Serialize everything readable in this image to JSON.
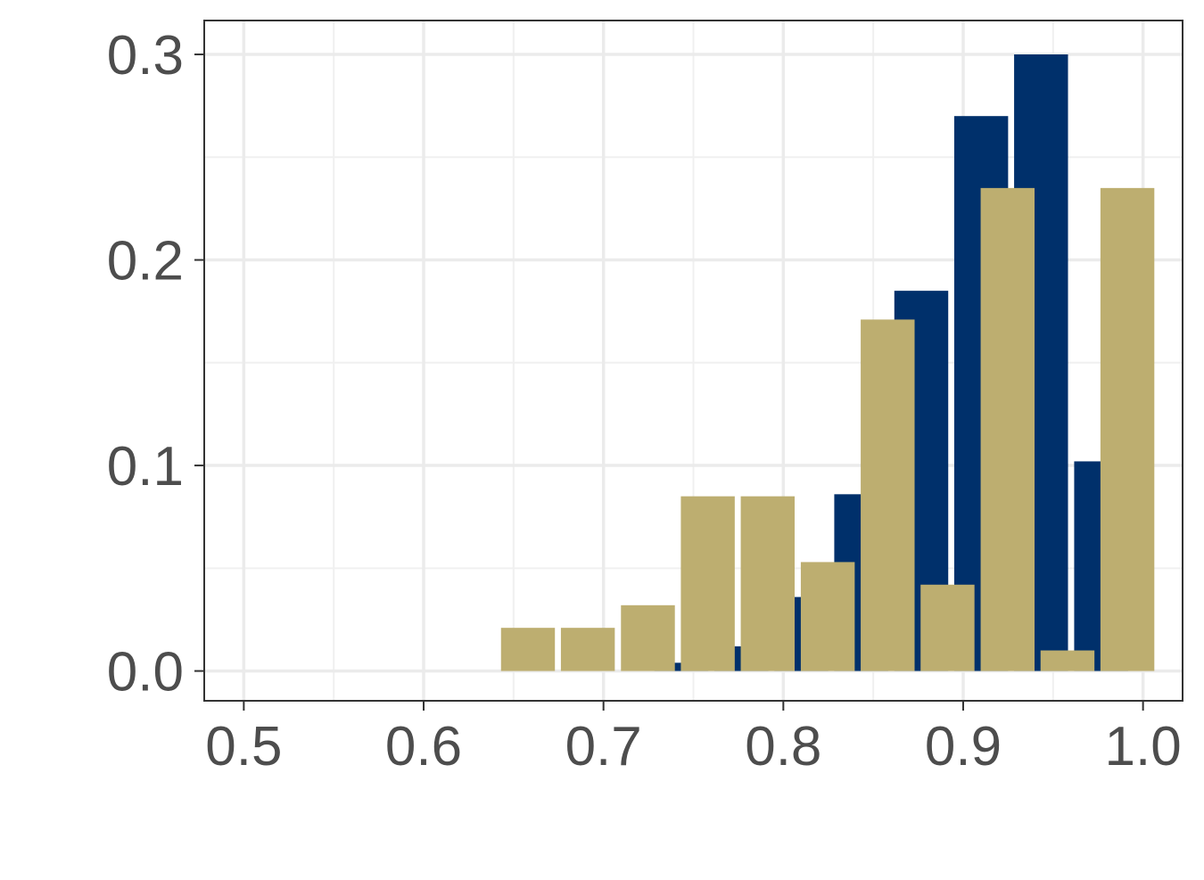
{
  "chart_data": {
    "type": "bar",
    "xlim": [
      0.478,
      1.022
    ],
    "ylim": [
      -0.0145,
      0.3165
    ],
    "x_ticks": [
      0.5,
      0.6,
      0.7,
      0.8,
      0.9,
      1.0
    ],
    "x_tick_labels": [
      "0.5",
      "0.6",
      "0.7",
      "0.8",
      "0.9",
      "1.0"
    ],
    "y_ticks": [
      0.0,
      0.1,
      0.2,
      0.3
    ],
    "y_tick_labels": [
      "0.0",
      "0.1",
      "0.2",
      "0.3"
    ],
    "bin_width": 0.0333,
    "grid": true,
    "legend": "none",
    "series": [
      {
        "color": "#00306b",
        "x": [
          0.7433,
          0.7767,
          0.81,
          0.8433,
          0.8767,
          0.91,
          0.9433,
          0.9767
        ],
        "values": [
          0.004,
          0.012,
          0.036,
          0.086,
          0.185,
          0.27,
          0.3,
          0.102
        ]
      },
      {
        "color": "#bdae70",
        "x": [
          0.658,
          0.6913,
          0.7247,
          0.758,
          0.7913,
          0.8247,
          0.858,
          0.8913,
          0.9247,
          0.958,
          0.9913
        ],
        "values": [
          0.021,
          0.021,
          0.032,
          0.085,
          0.085,
          0.053,
          0.171,
          0.042,
          0.235,
          0.01,
          0.235
        ]
      }
    ]
  }
}
